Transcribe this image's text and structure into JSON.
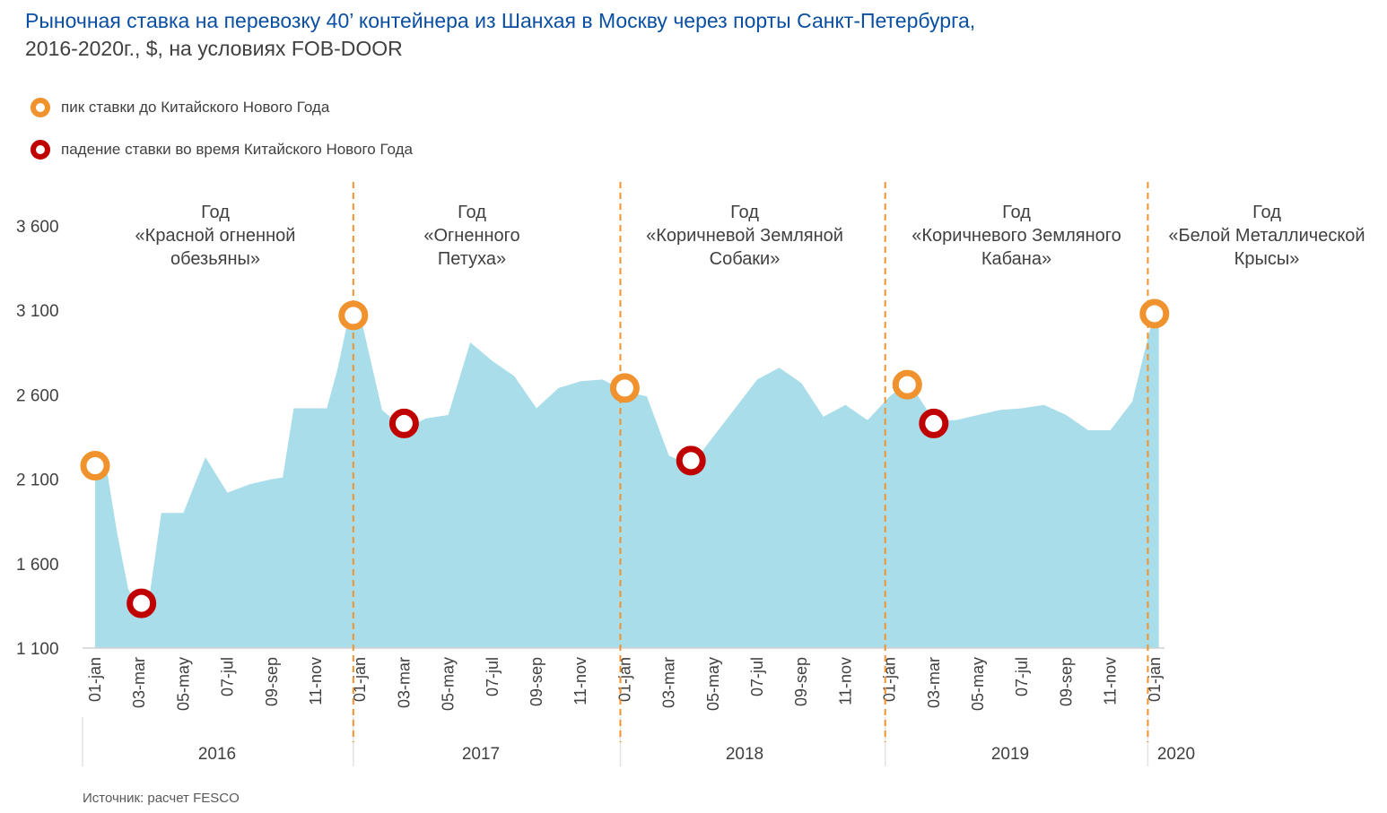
{
  "title": {
    "line1": "Рыночная ставка на перевозку 40’ контейнера из Шанхая в Москву через порты Санкт-Петербурга,",
    "line2": "2016-2020г., $, на условиях FOB-DOOR"
  },
  "legend": {
    "peak": {
      "label": "пик ставки до Китайского Нового Года",
      "color": "#f0922e"
    },
    "drop": {
      "label": "падение ставки во время Китайского Нового Года",
      "color": "#c00000"
    }
  },
  "source": "Источник: расчет FESCO",
  "colors": {
    "area": "#a8dde9",
    "divider": "#f0922e",
    "axis": "#d0d0d0"
  },
  "chart_data": {
    "type": "area",
    "title": "Рыночная ставка на перевозку 40’ контейнера из Шанхая в Москву через порты Санкт-Петербурга, 2016-2020г., $, на условиях FOB-DOOR",
    "unit": "$",
    "ylim": [
      1100,
      3600
    ],
    "yticks": [
      1100,
      1600,
      2100,
      2600,
      3100,
      3600
    ],
    "ytick_labels": [
      "1 100",
      "1 600",
      "2 100",
      "2 600",
      "3 100",
      "3 600"
    ],
    "years": [
      "2016",
      "2017",
      "2018",
      "2019",
      "2020"
    ],
    "xtick_labels": [
      "01-jan",
      "03-mar",
      "05-may",
      "07-jul",
      "09-sep",
      "11-nov",
      "01-jan",
      "03-mar",
      "05-may",
      "07-jul",
      "09-sep",
      "11-nov",
      "01-jan",
      "03-mar",
      "05-may",
      "07-jul",
      "09-sep",
      "11-nov",
      "01-jan",
      "03-mar",
      "05-may",
      "07-jul",
      "09-sep",
      "11-nov",
      "01-jan"
    ],
    "xtick_month_index": [
      0,
      2,
      4,
      6,
      8,
      10,
      12,
      14,
      16,
      18,
      20,
      22,
      24,
      26,
      28,
      30,
      32,
      34,
      36,
      38,
      40,
      42,
      44,
      46,
      48
    ],
    "series": [
      {
        "name": "Ставка, $",
        "points": [
          [
            0,
            2200
          ],
          [
            0.5,
            2180
          ],
          [
            1,
            1780
          ],
          [
            1.5,
            1450
          ],
          [
            2,
            1330
          ],
          [
            2.5,
            1440
          ],
          [
            3,
            1900
          ],
          [
            4,
            1900
          ],
          [
            5,
            2230
          ],
          [
            6,
            2020
          ],
          [
            7,
            2070
          ],
          [
            8,
            2100
          ],
          [
            8.5,
            2110
          ],
          [
            9,
            2520
          ],
          [
            10,
            2520
          ],
          [
            10.5,
            2520
          ],
          [
            11,
            2760
          ],
          [
            11.5,
            3070
          ],
          [
            12,
            3080
          ],
          [
            13,
            2510
          ],
          [
            14,
            2400
          ],
          [
            15,
            2460
          ],
          [
            16,
            2480
          ],
          [
            17,
            2910
          ],
          [
            18,
            2800
          ],
          [
            19,
            2710
          ],
          [
            20,
            2520
          ],
          [
            21,
            2640
          ],
          [
            22,
            2680
          ],
          [
            23,
            2690
          ],
          [
            24,
            2620
          ],
          [
            25,
            2590
          ],
          [
            26,
            2240
          ],
          [
            27,
            2180
          ],
          [
            28,
            2350
          ],
          [
            29,
            2520
          ],
          [
            30,
            2690
          ],
          [
            31,
            2760
          ],
          [
            32,
            2670
          ],
          [
            33,
            2470
          ],
          [
            34,
            2540
          ],
          [
            35,
            2450
          ],
          [
            36,
            2590
          ],
          [
            36.7,
            2660
          ],
          [
            37,
            2650
          ],
          [
            38,
            2450
          ],
          [
            39,
            2450
          ],
          [
            40,
            2480
          ],
          [
            41,
            2510
          ],
          [
            42,
            2520
          ],
          [
            43,
            2540
          ],
          [
            44,
            2480
          ],
          [
            45,
            2390
          ],
          [
            46,
            2390
          ],
          [
            47,
            2560
          ],
          [
            47.5,
            2830
          ],
          [
            48,
            3090
          ],
          [
            48.2,
            3110
          ]
        ]
      }
    ],
    "markers": [
      {
        "type": "peak",
        "x": 0,
        "y": 2180
      },
      {
        "type": "drop",
        "x": 2.1,
        "y": 1365
      },
      {
        "type": "peak",
        "x": 11.7,
        "y": 3070
      },
      {
        "type": "drop",
        "x": 14.0,
        "y": 2430
      },
      {
        "type": "peak",
        "x": 24.0,
        "y": 2640
      },
      {
        "type": "drop",
        "x": 27.0,
        "y": 2210
      },
      {
        "type": "peak",
        "x": 36.8,
        "y": 2660
      },
      {
        "type": "drop",
        "x": 38.0,
        "y": 2430
      },
      {
        "type": "peak",
        "x": 48.0,
        "y": 3080
      }
    ],
    "year_dividers_month_index": [
      11.7,
      23.8,
      35.8,
      47.7
    ],
    "zodiac_annotations": [
      {
        "lines": [
          "Год",
          "«Красной огненной",
          "обезьяны»"
        ]
      },
      {
        "lines": [
          "Год",
          "«Огненного",
          "Петуха»"
        ]
      },
      {
        "lines": [
          "Год",
          "«Коричневой Земляной",
          "Собаки»"
        ]
      },
      {
        "lines": [
          "Год",
          "«Коричневого Земляного",
          "Кабана»"
        ]
      },
      {
        "lines": [
          "Год",
          "«Белой Металлической",
          "Крысы»"
        ]
      }
    ]
  }
}
